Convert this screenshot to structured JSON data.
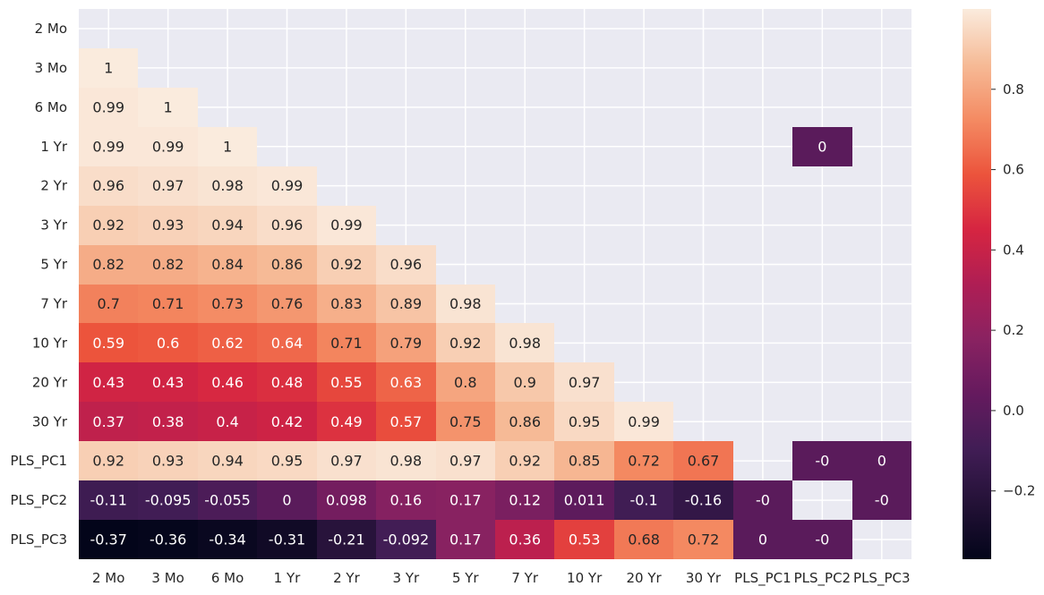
{
  "chart_data": {
    "type": "heatmap",
    "title": "",
    "xlabel": "",
    "ylabel": "",
    "rows": [
      "2 Mo",
      "3 Mo",
      "6 Mo",
      "1 Yr",
      "2 Yr",
      "3 Yr",
      "5 Yr",
      "7 Yr",
      "10 Yr",
      "20 Yr",
      "30 Yr",
      "PLS_PC1",
      "PLS_PC2",
      "PLS_PC3"
    ],
    "columns": [
      "2 Mo",
      "3 Mo",
      "6 Mo",
      "1 Yr",
      "2 Yr",
      "3 Yr",
      "5 Yr",
      "7 Yr",
      "10 Yr",
      "20 Yr",
      "30 Yr",
      "PLS_PC1",
      "PLS_PC2",
      "PLS_PC3"
    ],
    "values": [
      [
        null,
        null,
        null,
        null,
        null,
        null,
        null,
        null,
        null,
        null,
        null,
        null,
        null,
        null
      ],
      [
        1,
        null,
        null,
        null,
        null,
        null,
        null,
        null,
        null,
        null,
        null,
        null,
        null,
        null
      ],
      [
        0.99,
        1,
        null,
        null,
        null,
        null,
        null,
        null,
        null,
        null,
        null,
        null,
        null,
        null
      ],
      [
        0.99,
        0.99,
        1,
        null,
        null,
        null,
        null,
        null,
        null,
        null,
        null,
        null,
        0,
        null
      ],
      [
        0.96,
        0.97,
        0.98,
        0.99,
        null,
        null,
        null,
        null,
        null,
        null,
        null,
        null,
        null,
        null
      ],
      [
        0.92,
        0.93,
        0.94,
        0.96,
        0.99,
        null,
        null,
        null,
        null,
        null,
        null,
        null,
        null,
        null
      ],
      [
        0.82,
        0.82,
        0.84,
        0.86,
        0.92,
        0.96,
        null,
        null,
        null,
        null,
        null,
        null,
        null,
        null
      ],
      [
        0.7,
        0.71,
        0.73,
        0.76,
        0.83,
        0.89,
        0.98,
        null,
        null,
        null,
        null,
        null,
        null,
        null
      ],
      [
        0.59,
        0.6,
        0.62,
        0.64,
        0.71,
        0.79,
        0.92,
        0.98,
        null,
        null,
        null,
        null,
        null,
        null
      ],
      [
        0.43,
        0.43,
        0.46,
        0.48,
        0.55,
        0.63,
        0.8,
        0.9,
        0.97,
        null,
        null,
        null,
        null,
        null
      ],
      [
        0.37,
        0.38,
        0.4,
        0.42,
        0.49,
        0.57,
        0.75,
        0.86,
        0.95,
        0.99,
        null,
        null,
        null,
        null
      ],
      [
        0.92,
        0.93,
        0.94,
        0.95,
        0.97,
        0.98,
        0.97,
        0.92,
        0.85,
        0.72,
        0.67,
        null,
        0,
        0
      ],
      [
        -0.11,
        -0.095,
        -0.055,
        0,
        0.098,
        0.16,
        0.17,
        0.12,
        0.011,
        -0.1,
        -0.16,
        0,
        null,
        0
      ],
      [
        -0.37,
        -0.36,
        -0.34,
        -0.31,
        -0.21,
        -0.092,
        0.17,
        0.36,
        0.53,
        0.68,
        0.72,
        0,
        0,
        null
      ]
    ],
    "value_labels": [
      [
        null,
        null,
        null,
        null,
        null,
        null,
        null,
        null,
        null,
        null,
        null,
        null,
        null,
        null
      ],
      [
        "1",
        null,
        null,
        null,
        null,
        null,
        null,
        null,
        null,
        null,
        null,
        null,
        null,
        null
      ],
      [
        "0.99",
        "1",
        null,
        null,
        null,
        null,
        null,
        null,
        null,
        null,
        null,
        null,
        null,
        null
      ],
      [
        "0.99",
        "0.99",
        "1",
        null,
        null,
        null,
        null,
        null,
        null,
        null,
        null,
        null,
        "0",
        null
      ],
      [
        "0.96",
        "0.97",
        "0.98",
        "0.99",
        null,
        null,
        null,
        null,
        null,
        null,
        null,
        null,
        null,
        null
      ],
      [
        "0.92",
        "0.93",
        "0.94",
        "0.96",
        "0.99",
        null,
        null,
        null,
        null,
        null,
        null,
        null,
        null,
        null
      ],
      [
        "0.82",
        "0.82",
        "0.84",
        "0.86",
        "0.92",
        "0.96",
        null,
        null,
        null,
        null,
        null,
        null,
        null,
        null
      ],
      [
        "0.7",
        "0.71",
        "0.73",
        "0.76",
        "0.83",
        "0.89",
        "0.98",
        null,
        null,
        null,
        null,
        null,
        null,
        null
      ],
      [
        "0.59",
        "0.6",
        "0.62",
        "0.64",
        "0.71",
        "0.79",
        "0.92",
        "0.98",
        null,
        null,
        null,
        null,
        null,
        null
      ],
      [
        "0.43",
        "0.43",
        "0.46",
        "0.48",
        "0.55",
        "0.63",
        "0.8",
        "0.9",
        "0.97",
        null,
        null,
        null,
        null,
        null
      ],
      [
        "0.37",
        "0.38",
        "0.4",
        "0.42",
        "0.49",
        "0.57",
        "0.75",
        "0.86",
        "0.95",
        "0.99",
        null,
        null,
        null,
        null
      ],
      [
        "0.92",
        "0.93",
        "0.94",
        "0.95",
        "0.97",
        "0.98",
        "0.97",
        "0.92",
        "0.85",
        "0.72",
        "0.67",
        null,
        "-0",
        "0"
      ],
      [
        "-0.11",
        "-0.095",
        "-0.055",
        "0",
        "0.098",
        "0.16",
        "0.17",
        "0.12",
        "0.011",
        "-0.1",
        "-0.16",
        "-0",
        null,
        "-0"
      ],
      [
        "-0.37",
        "-0.36",
        "-0.34",
        "-0.31",
        "-0.21",
        "-0.092",
        "0.17",
        "0.36",
        "0.53",
        "0.68",
        "0.72",
        "0",
        "-0",
        null
      ]
    ],
    "vmin": -0.37,
    "vmax": 1.0,
    "colormap": "rocket",
    "colorbar_ticks": [
      -0.2,
      0.0,
      0.2,
      0.4,
      0.6,
      0.8
    ],
    "colorbar_tick_labels": [
      "−0.2",
      "0.0",
      "0.2",
      "0.4",
      "0.6",
      "0.8"
    ],
    "grid": true,
    "colors": {
      "background": "#eaeaf2",
      "grid": "#ffffff",
      "text_dark": "#262626",
      "text_light": "#ffffff"
    }
  }
}
